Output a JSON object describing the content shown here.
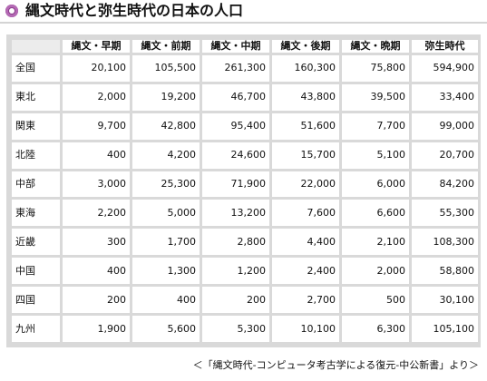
{
  "title": "縄文時代と弥生時代の日本の人口",
  "table": {
    "headers": [
      "縄文・早期",
      "縄文・前期",
      "縄文・中期",
      "縄文・後期",
      "縄文・晩期",
      "弥生時代"
    ],
    "rows": [
      {
        "region": "全国",
        "values": [
          "20,100",
          "105,500",
          "261,300",
          "160,300",
          "75,800",
          "594,900"
        ]
      },
      {
        "region": "東北",
        "values": [
          "2,000",
          "19,200",
          "46,700",
          "43,800",
          "39,500",
          "33,400"
        ]
      },
      {
        "region": "関東",
        "values": [
          "9,700",
          "42,800",
          "95,400",
          "51,600",
          "7,700",
          "99,000"
        ]
      },
      {
        "region": "北陸",
        "values": [
          "400",
          "4,200",
          "24,600",
          "15,700",
          "5,100",
          "20,700"
        ]
      },
      {
        "region": "中部",
        "values": [
          "3,000",
          "25,300",
          "71,900",
          "22,000",
          "6,000",
          "84,200"
        ]
      },
      {
        "region": "東海",
        "values": [
          "2,200",
          "5,000",
          "13,200",
          "7,600",
          "6,600",
          "55,300"
        ]
      },
      {
        "region": "近畿",
        "values": [
          "300",
          "1,700",
          "2,800",
          "4,400",
          "2,100",
          "108,300"
        ]
      },
      {
        "region": "中国",
        "values": [
          "400",
          "1,300",
          "1,200",
          "2,400",
          "2,000",
          "58,800"
        ]
      },
      {
        "region": "四国",
        "values": [
          "200",
          "400",
          "200",
          "2,700",
          "500",
          "30,100"
        ]
      },
      {
        "region": "九州",
        "values": [
          "1,900",
          "5,600",
          "5,300",
          "10,100",
          "6,300",
          "105,100"
        ]
      }
    ]
  },
  "source": "＜「縄文時代-コンピュータ考古学による復元-中公新書」より＞",
  "colors": {
    "title_dot": "#8b3a8b",
    "grid": "#d9d9d9",
    "corner_cell": "#ececec"
  }
}
